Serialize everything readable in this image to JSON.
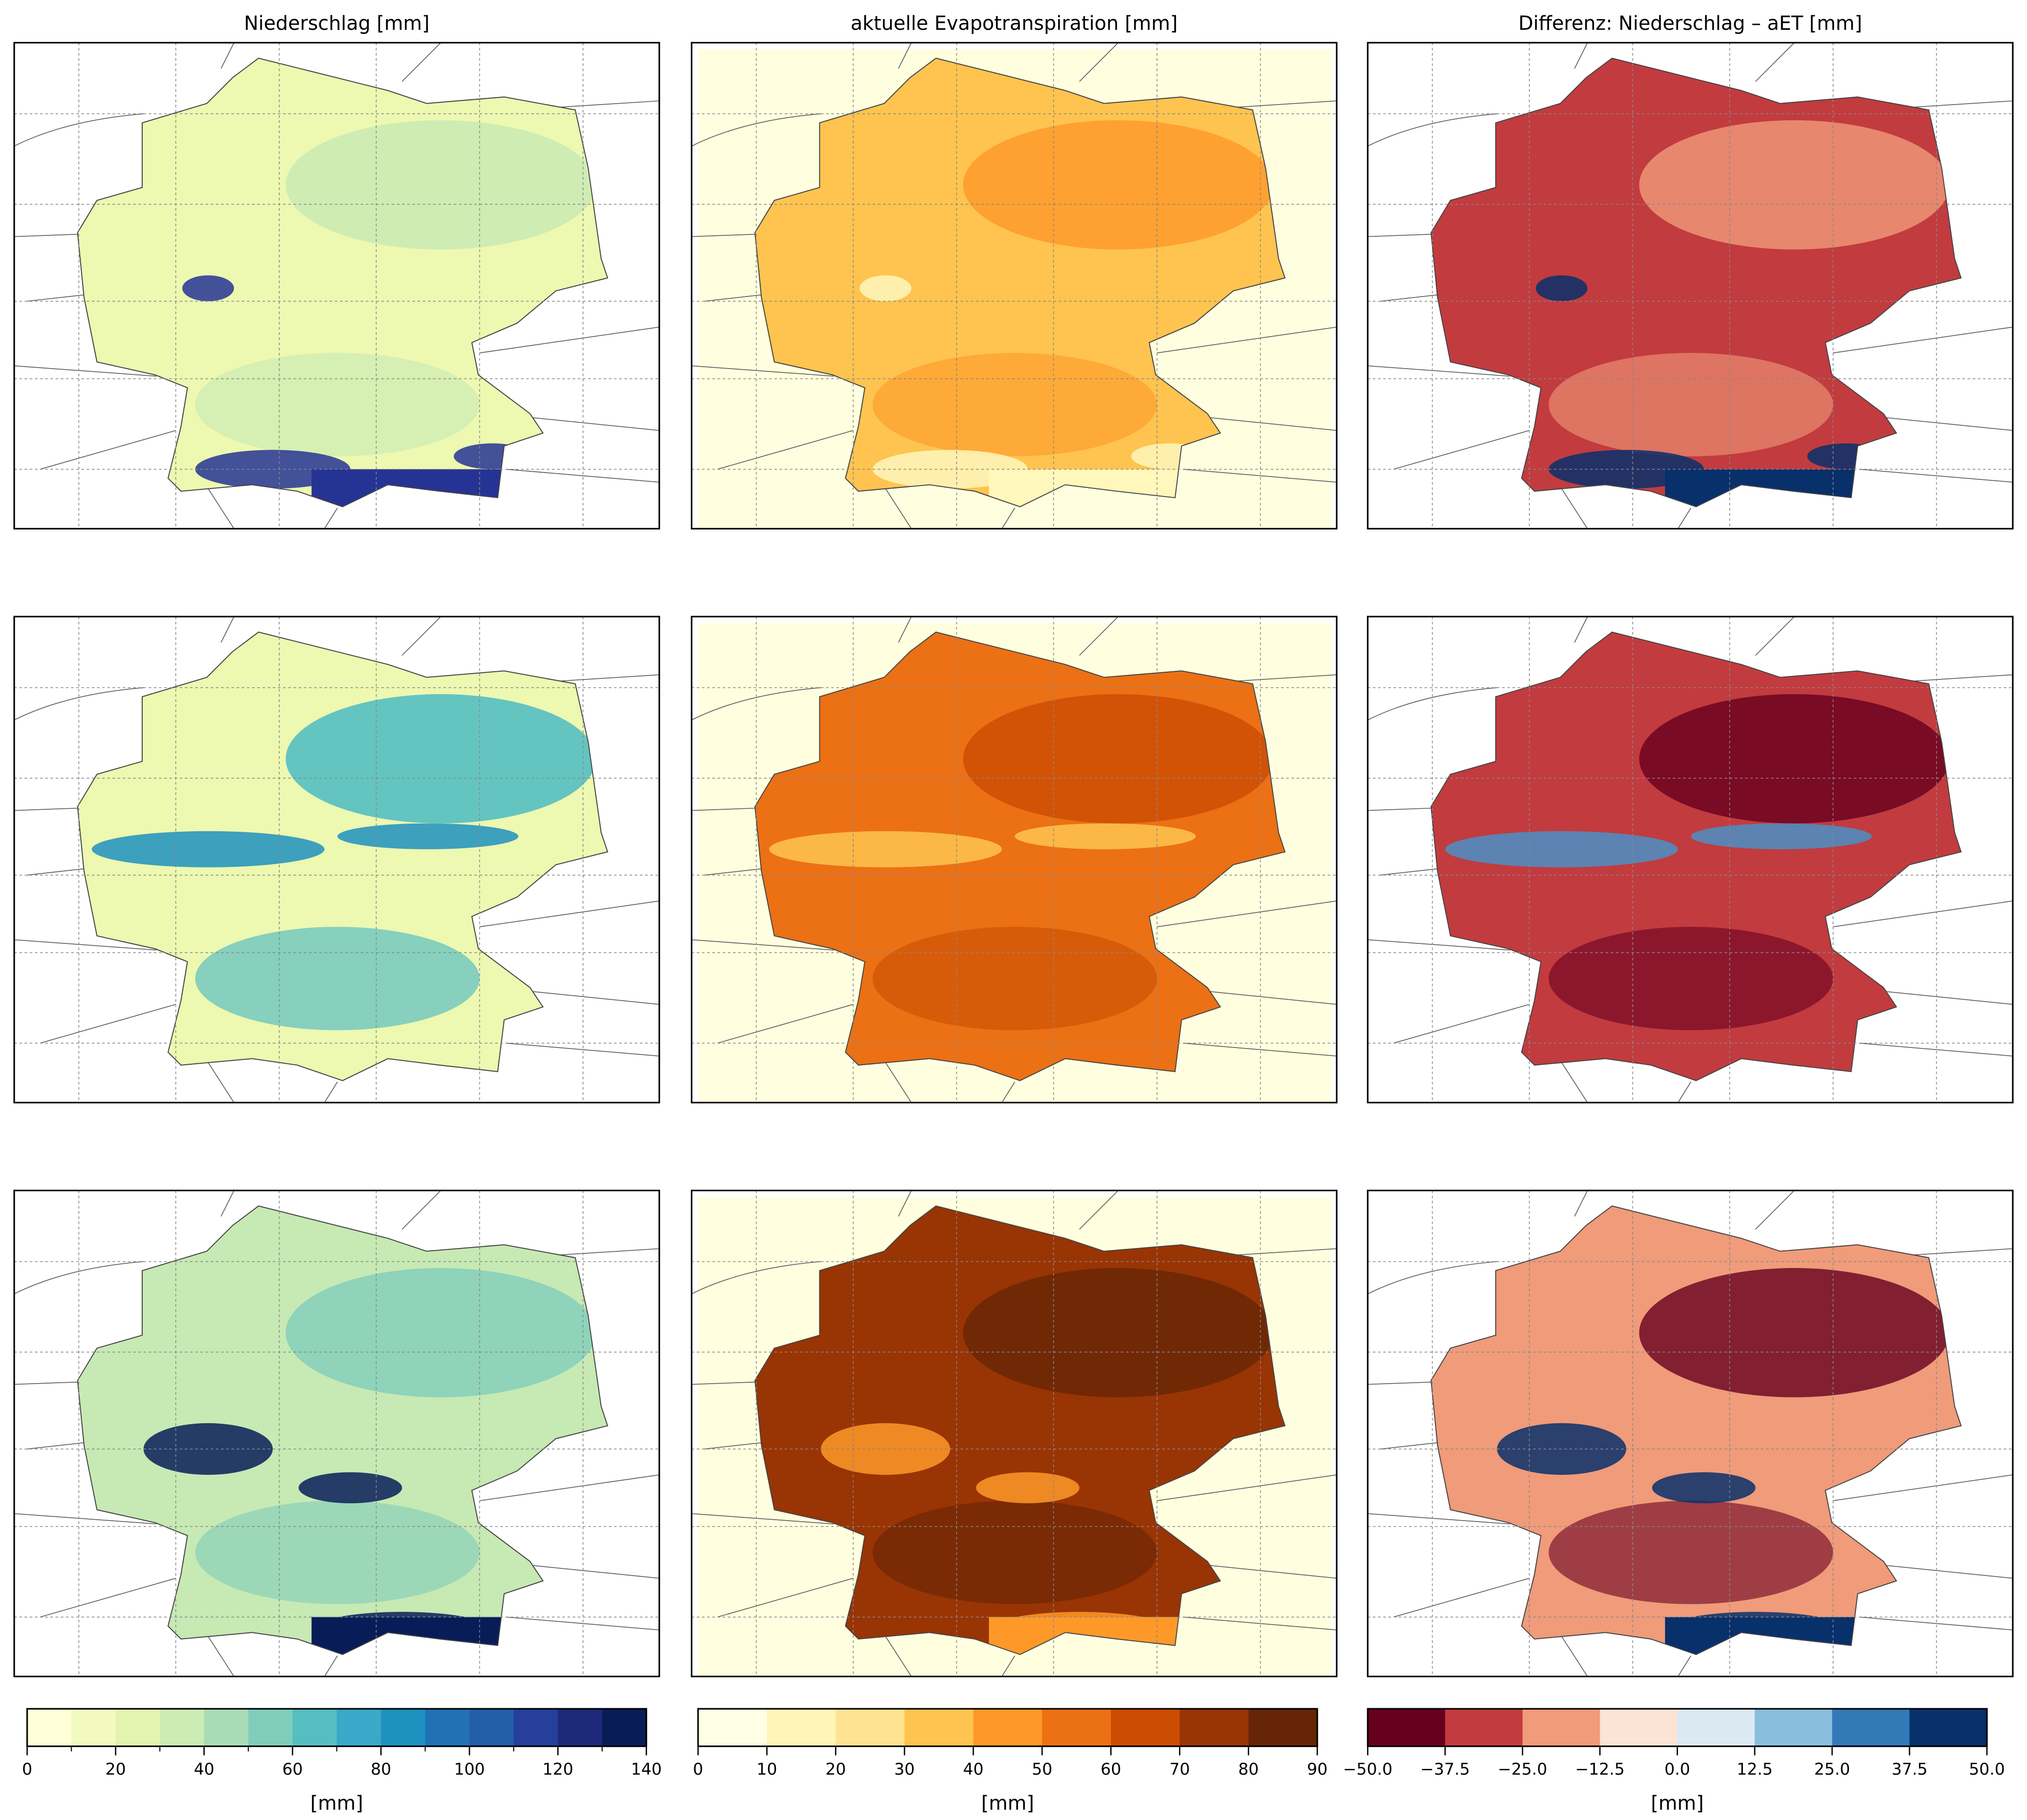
{
  "columns": [
    {
      "title": "Niederschlag [mm]"
    },
    {
      "title": "aktuelle Evapotranspiration [mm]"
    },
    {
      "title": "Differenz: Niederschlag – aET [mm]"
    }
  ],
  "panels": [
    [
      {
        "base": "#edf8b1",
        "accent": "#c7e9b4",
        "hot": "#253494"
      },
      {
        "base": "#fec44f",
        "accent": "#fe9929",
        "hot": "#fff7bc"
      },
      {
        "base": "#c23b3f",
        "accent": "#f09b7a",
        "hot": "#08306b"
      }
    ],
    [
      {
        "base": "#edf8b1",
        "accent": "#41b6c4",
        "hot": "#1d91c0"
      },
      {
        "base": "#ec7014",
        "accent": "#cc4c02",
        "hot": "#fec44f"
      },
      {
        "base": "#c23b3f",
        "accent": "#67001f",
        "hot": "#4a90c6"
      }
    ],
    [
      {
        "base": "#c7e9b4",
        "accent": "#7fcdbb",
        "hot": "#081d58"
      },
      {
        "base": "#993404",
        "accent": "#662506",
        "hot": "#fe9929"
      },
      {
        "base": "#f09b7a",
        "accent": "#67001f",
        "hot": "#08306b"
      }
    ]
  ],
  "colorbars": [
    {
      "label": "[mm]",
      "ticks": [
        "0",
        "20",
        "40",
        "60",
        "80",
        "100",
        "120",
        "140"
      ],
      "colors": [
        "#ffffd9",
        "#f3fac0",
        "#e3f4b1",
        "#cdebb4",
        "#a8dcb6",
        "#7fcdbb",
        "#56bec2",
        "#39a8c9",
        "#1f91c0",
        "#2171b5",
        "#225ea8",
        "#253f9b",
        "#1d2a7c",
        "#081d58"
      ]
    },
    {
      "label": "[mm]",
      "ticks": [
        "0",
        "10",
        "20",
        "30",
        "40",
        "50",
        "60",
        "70",
        "80",
        "90"
      ],
      "colors": [
        "#ffffe5",
        "#fff5b8",
        "#fee391",
        "#fec44f",
        "#fe9929",
        "#ec7014",
        "#cc4c02",
        "#993404",
        "#662506"
      ]
    },
    {
      "label": "[mm]",
      "ticks": [
        "−50.0",
        "−37.5",
        "−25.0",
        "−12.5",
        "0.0",
        "12.5",
        "25.0",
        "37.5",
        "50.0"
      ],
      "colors": [
        "#67001f",
        "#c23b3f",
        "#f09b7a",
        "#fbe3d6",
        "#dbeaf2",
        "#89bedc",
        "#3279b8",
        "#08306b"
      ]
    }
  ]
}
